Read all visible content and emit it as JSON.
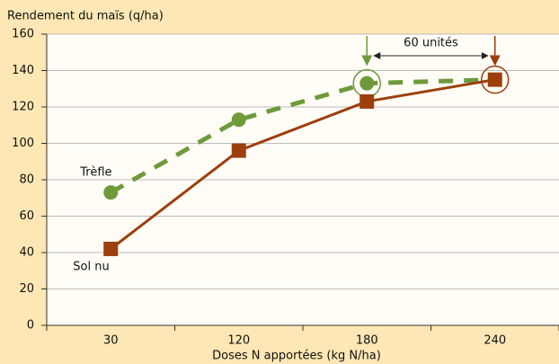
{
  "chart_data": {
    "type": "line",
    "y_label": "Rendement du maïs (q/ha)",
    "x_label": "Doses N apportées (kg N/ha)",
    "categories": [
      "30",
      "120",
      "180",
      "240"
    ],
    "series": [
      {
        "name": "Trèfle",
        "color": "#6f9a3c",
        "values": [
          73,
          113,
          133,
          135
        ],
        "dashed": true,
        "marker": "circle"
      },
      {
        "name": "Sol nu",
        "color": "#9c3f0c",
        "values": [
          42,
          96,
          123,
          135
        ],
        "dashed": false,
        "marker": "square"
      }
    ],
    "annotation": "60 unités",
    "ylim": [
      0,
      160
    ],
    "yticks": [
      0,
      20,
      40,
      60,
      80,
      100,
      120,
      140,
      160
    ],
    "grid": true
  }
}
